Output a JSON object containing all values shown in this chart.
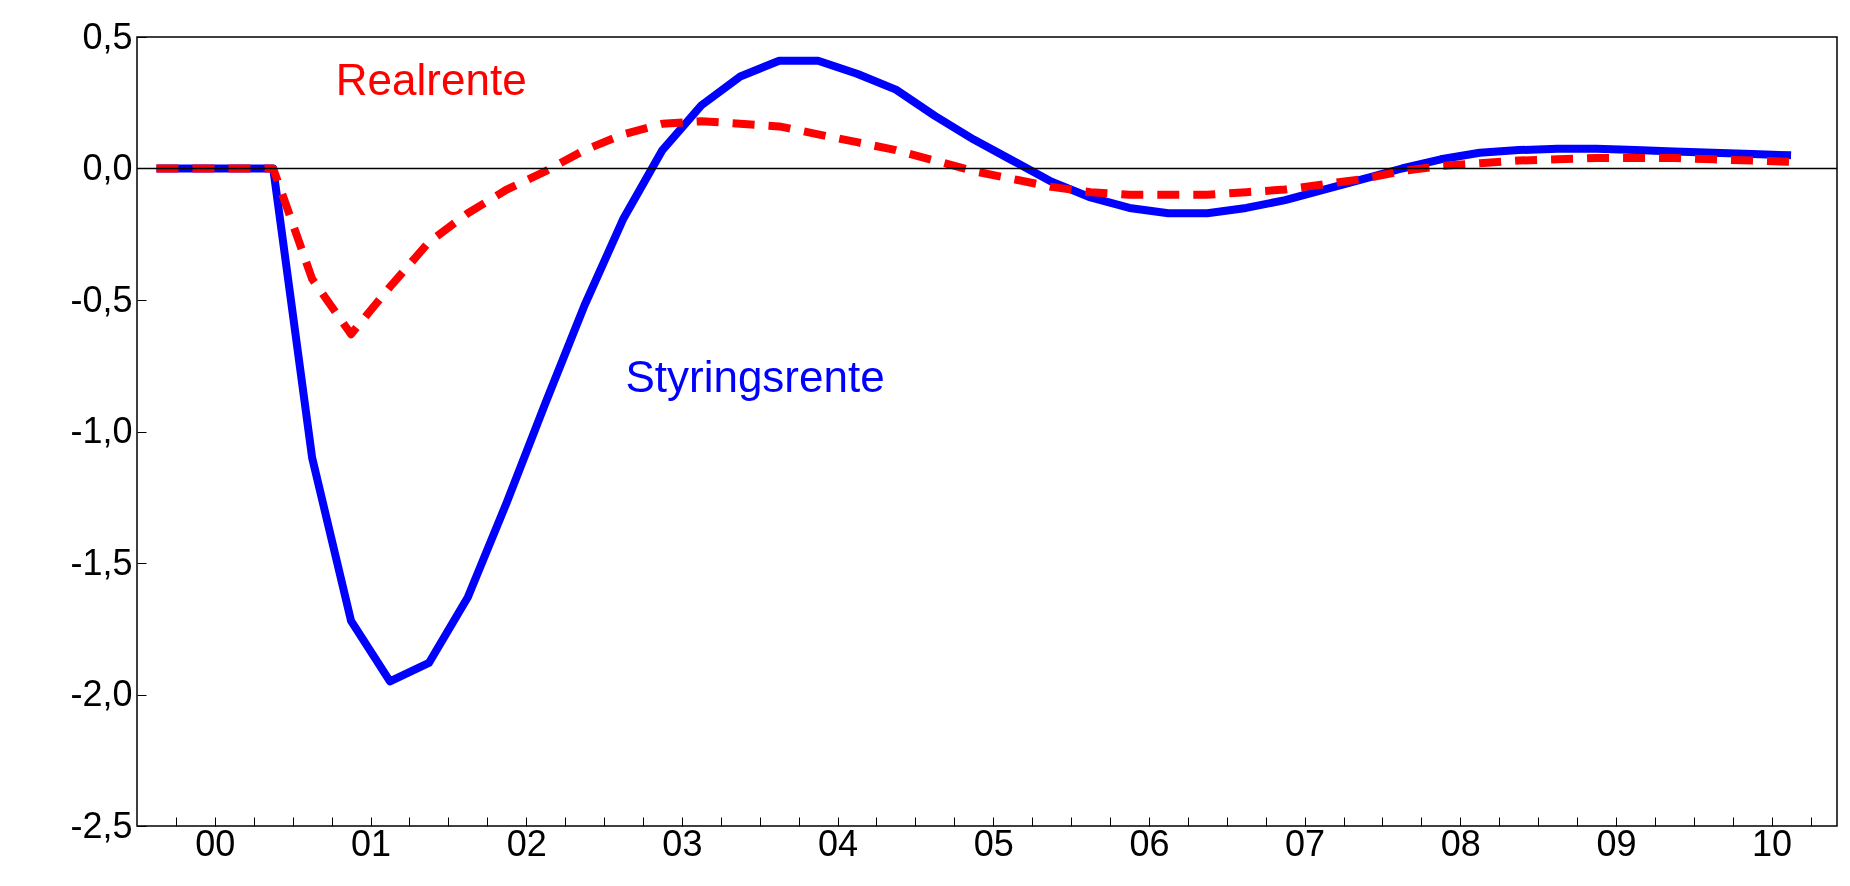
{
  "chart_data": {
    "type": "line",
    "x": [
      0.125,
      0.375,
      0.625,
      0.875,
      1.125,
      1.375,
      1.625,
      1.875,
      2.125,
      2.375,
      2.625,
      2.875,
      3.125,
      3.375,
      3.625,
      3.875,
      4.125,
      4.375,
      4.625,
      4.875,
      5.125,
      5.375,
      5.625,
      5.875,
      6.125,
      6.375,
      6.625,
      6.875,
      7.125,
      7.375,
      7.625,
      7.875,
      8.125,
      8.375,
      8.625,
      8.875,
      9.125,
      9.375,
      9.625,
      9.875,
      10.125,
      10.375,
      10.625
    ],
    "series": [
      {
        "name": "Styringsrente",
        "color": "#0000ff",
        "line_style": "solid",
        "values": [
          0,
          0,
          0,
          0,
          -1.1,
          -1.72,
          -1.95,
          -1.88,
          -1.63,
          -1.27,
          -0.89,
          -0.52,
          -0.19,
          0.07,
          0.24,
          0.35,
          0.41,
          0.41,
          0.36,
          0.3,
          0.2,
          0.11,
          0.03,
          -0.05,
          -0.11,
          -0.15,
          -0.17,
          -0.17,
          -0.15,
          -0.12,
          -0.08,
          -0.04,
          0,
          0.035,
          0.06,
          0.07,
          0.075,
          0.075,
          0.07,
          0.065,
          0.06,
          0.055,
          0.05
        ]
      },
      {
        "name": "Realrente",
        "color": "#ff0000",
        "line_style": "dashed",
        "values": [
          0,
          0,
          0,
          0,
          -0.42,
          -0.63,
          -0.45,
          -0.28,
          -0.17,
          -0.08,
          -0.01,
          0.07,
          0.13,
          0.17,
          0.18,
          0.17,
          0.16,
          0.13,
          0.1,
          0.07,
          0.03,
          -0.01,
          -0.04,
          -0.07,
          -0.09,
          -0.1,
          -0.1,
          -0.1,
          -0.09,
          -0.08,
          -0.06,
          -0.04,
          -0.01,
          0.01,
          0.02,
          0.03,
          0.035,
          0.04,
          0.04,
          0.04,
          0.035,
          0.03,
          0.025
        ]
      }
    ],
    "xlim": [
      0,
      10.92
    ],
    "xticks": [
      {
        "value": 0.25,
        "label": null
      },
      {
        "value": 0.5,
        "label": "00"
      },
      {
        "value": 0.75,
        "label": null
      },
      {
        "value": 1,
        "label": null
      },
      {
        "value": 1.25,
        "label": null
      },
      {
        "value": 1.5,
        "label": "01"
      },
      {
        "value": 1.75,
        "label": null
      },
      {
        "value": 2,
        "label": null
      },
      {
        "value": 2.25,
        "label": null
      },
      {
        "value": 2.5,
        "label": "02"
      },
      {
        "value": 2.75,
        "label": null
      },
      {
        "value": 3,
        "label": null
      },
      {
        "value": 3.25,
        "label": null
      },
      {
        "value": 3.5,
        "label": "03"
      },
      {
        "value": 3.75,
        "label": null
      },
      {
        "value": 4,
        "label": null
      },
      {
        "value": 4.25,
        "label": null
      },
      {
        "value": 4.5,
        "label": "04"
      },
      {
        "value": 4.75,
        "label": null
      },
      {
        "value": 5,
        "label": null
      },
      {
        "value": 5.25,
        "label": null
      },
      {
        "value": 5.5,
        "label": "05"
      },
      {
        "value": 5.75,
        "label": null
      },
      {
        "value": 6,
        "label": null
      },
      {
        "value": 6.25,
        "label": null
      },
      {
        "value": 6.5,
        "label": "06"
      },
      {
        "value": 6.75,
        "label": null
      },
      {
        "value": 7,
        "label": null
      },
      {
        "value": 7.25,
        "label": null
      },
      {
        "value": 7.5,
        "label": "07"
      },
      {
        "value": 7.75,
        "label": null
      },
      {
        "value": 8,
        "label": null
      },
      {
        "value": 8.25,
        "label": null
      },
      {
        "value": 8.5,
        "label": "08"
      },
      {
        "value": 8.75,
        "label": null
      },
      {
        "value": 9,
        "label": null
      },
      {
        "value": 9.25,
        "label": null
      },
      {
        "value": 9.5,
        "label": "09"
      },
      {
        "value": 9.75,
        "label": null
      },
      {
        "value": 10,
        "label": null
      },
      {
        "value": 10.25,
        "label": null
      },
      {
        "value": 10.5,
        "label": "10"
      },
      {
        "value": 10.75,
        "label": null
      }
    ],
    "ylim": [
      -2.5,
      0.5
    ],
    "yticks": [
      {
        "value": -2.5,
        "label": "-2,5"
      },
      {
        "value": -2,
        "label": "-2,0"
      },
      {
        "value": -1.5,
        "label": "-1,5"
      },
      {
        "value": -1,
        "label": "-1,0"
      },
      {
        "value": -0.5,
        "label": "-0,5"
      },
      {
        "value": 0,
        "label": "0,0"
      },
      {
        "value": 0.5,
        "label": "0,5"
      }
    ],
    "ref_lines": [
      {
        "axis": "y",
        "value": 0,
        "color": "#000000"
      }
    ]
  }
}
